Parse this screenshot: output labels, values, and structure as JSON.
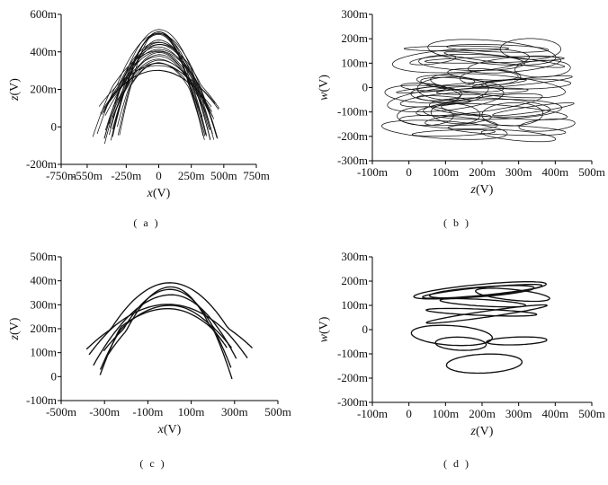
{
  "chart_data": [
    {
      "panel": "a",
      "type": "line",
      "caption": "( a )",
      "xlabel_main": "x",
      "xlabel_unit": "(V)",
      "ylabel_main": "z",
      "ylabel_unit": "(V)",
      "xlim": [
        -750,
        750
      ],
      "ylim": [
        -200,
        600
      ],
      "xticks": [
        {
          "v": -750,
          "label": "-750m"
        },
        {
          "v": -550,
          "label": "-550m"
        },
        {
          "v": -250,
          "label": "-250m"
        },
        {
          "v": 0,
          "label": "0"
        },
        {
          "v": 250,
          "label": "250m"
        },
        {
          "v": 500,
          "label": "500m"
        },
        {
          "v": 750,
          "label": "750m"
        }
      ],
      "yticks": [
        {
          "v": -200,
          "label": "-200m"
        },
        {
          "v": 0,
          "label": "0"
        },
        {
          "v": 200,
          "label": "200m"
        },
        {
          "v": 400,
          "label": "400m"
        },
        {
          "v": 600,
          "label": "600m"
        }
      ],
      "attractor": "butterfly",
      "dense": true,
      "loops": 28,
      "x_half_width_range": [
        320,
        470
      ],
      "z_top_range": [
        300,
        520
      ],
      "z_center": 210,
      "z_bottom_range": [
        -80,
        120
      ]
    },
    {
      "panel": "b",
      "type": "line",
      "caption": "( b )",
      "xlabel_main": "z",
      "xlabel_unit": "(V)",
      "ylabel_main": "w",
      "ylabel_unit": "(V)",
      "xlim": [
        -100,
        500
      ],
      "ylim": [
        -300,
        300
      ],
      "xticks": [
        {
          "v": -100,
          "label": "-100m"
        },
        {
          "v": 0,
          "label": "0"
        },
        {
          "v": 100,
          "label": "100m"
        },
        {
          "v": 200,
          "label": "200m"
        },
        {
          "v": 300,
          "label": "300m"
        },
        {
          "v": 400,
          "label": "400m"
        },
        {
          "v": 500,
          "label": "500m"
        }
      ],
      "yticks": [
        {
          "v": -300,
          "label": "-300m"
        },
        {
          "v": -200,
          "label": "-200m"
        },
        {
          "v": -100,
          "label": "-100m"
        },
        {
          "v": 0,
          "label": "0"
        },
        {
          "v": 100,
          "label": "100m"
        },
        {
          "v": 200,
          "label": "200m"
        },
        {
          "v": 300,
          "label": "300m"
        }
      ],
      "attractor": "ellipses",
      "dense": true,
      "loops": 42,
      "z_range": [
        -80,
        470
      ],
      "w_range": [
        -220,
        210
      ]
    },
    {
      "panel": "c",
      "type": "line",
      "caption": "( c )",
      "xlabel_main": "x",
      "xlabel_unit": "(V)",
      "ylabel_main": "z",
      "ylabel_unit": "(V)",
      "xlim": [
        -500,
        500
      ],
      "ylim": [
        -100,
        500
      ],
      "xticks": [
        {
          "v": -500,
          "label": "-500m"
        },
        {
          "v": -300,
          "label": "-300m"
        },
        {
          "v": -100,
          "label": "-100m"
        },
        {
          "v": 100,
          "label": "100m"
        },
        {
          "v": 300,
          "label": "300m"
        },
        {
          "v": 500,
          "label": "500m"
        }
      ],
      "yticks": [
        {
          "v": -100,
          "label": "-100m"
        },
        {
          "v": 0,
          "label": "0"
        },
        {
          "v": 100,
          "label": "100m"
        },
        {
          "v": 200,
          "label": "200m"
        },
        {
          "v": 300,
          "label": "300m"
        },
        {
          "v": 400,
          "label": "400m"
        },
        {
          "v": 500,
          "label": "500m"
        }
      ],
      "attractor": "butterfly",
      "dense": false,
      "loops": 7,
      "x_half_width_range": [
        260,
        400
      ],
      "z_top_range": [
        280,
        420
      ],
      "z_center": 200,
      "z_bottom_range": [
        -10,
        120
      ]
    },
    {
      "panel": "d",
      "type": "line",
      "caption": "( d )",
      "xlabel_main": "z",
      "xlabel_unit": "(V)",
      "ylabel_main": "w",
      "ylabel_unit": "(V)",
      "xlim": [
        -100,
        500
      ],
      "ylim": [
        -300,
        300
      ],
      "xticks": [
        {
          "v": -100,
          "label": "-100m"
        },
        {
          "v": 0,
          "label": "0"
        },
        {
          "v": 100,
          "label": "100m"
        },
        {
          "v": 200,
          "label": "200m"
        },
        {
          "v": 300,
          "label": "300m"
        },
        {
          "v": 400,
          "label": "400m"
        },
        {
          "v": 500,
          "label": "500m"
        }
      ],
      "yticks": [
        {
          "v": -300,
          "label": "-300m"
        },
        {
          "v": -200,
          "label": "-200m"
        },
        {
          "v": -100,
          "label": "-100m"
        },
        {
          "v": 0,
          "label": "0"
        },
        {
          "v": 100,
          "label": "100m"
        },
        {
          "v": 200,
          "label": "200m"
        },
        {
          "v": 300,
          "label": "300m"
        }
      ],
      "attractor": "ellipses",
      "dense": false,
      "loops": 11,
      "z_range": [
        0,
        420
      ],
      "w_range": [
        -200,
        200
      ]
    }
  ]
}
